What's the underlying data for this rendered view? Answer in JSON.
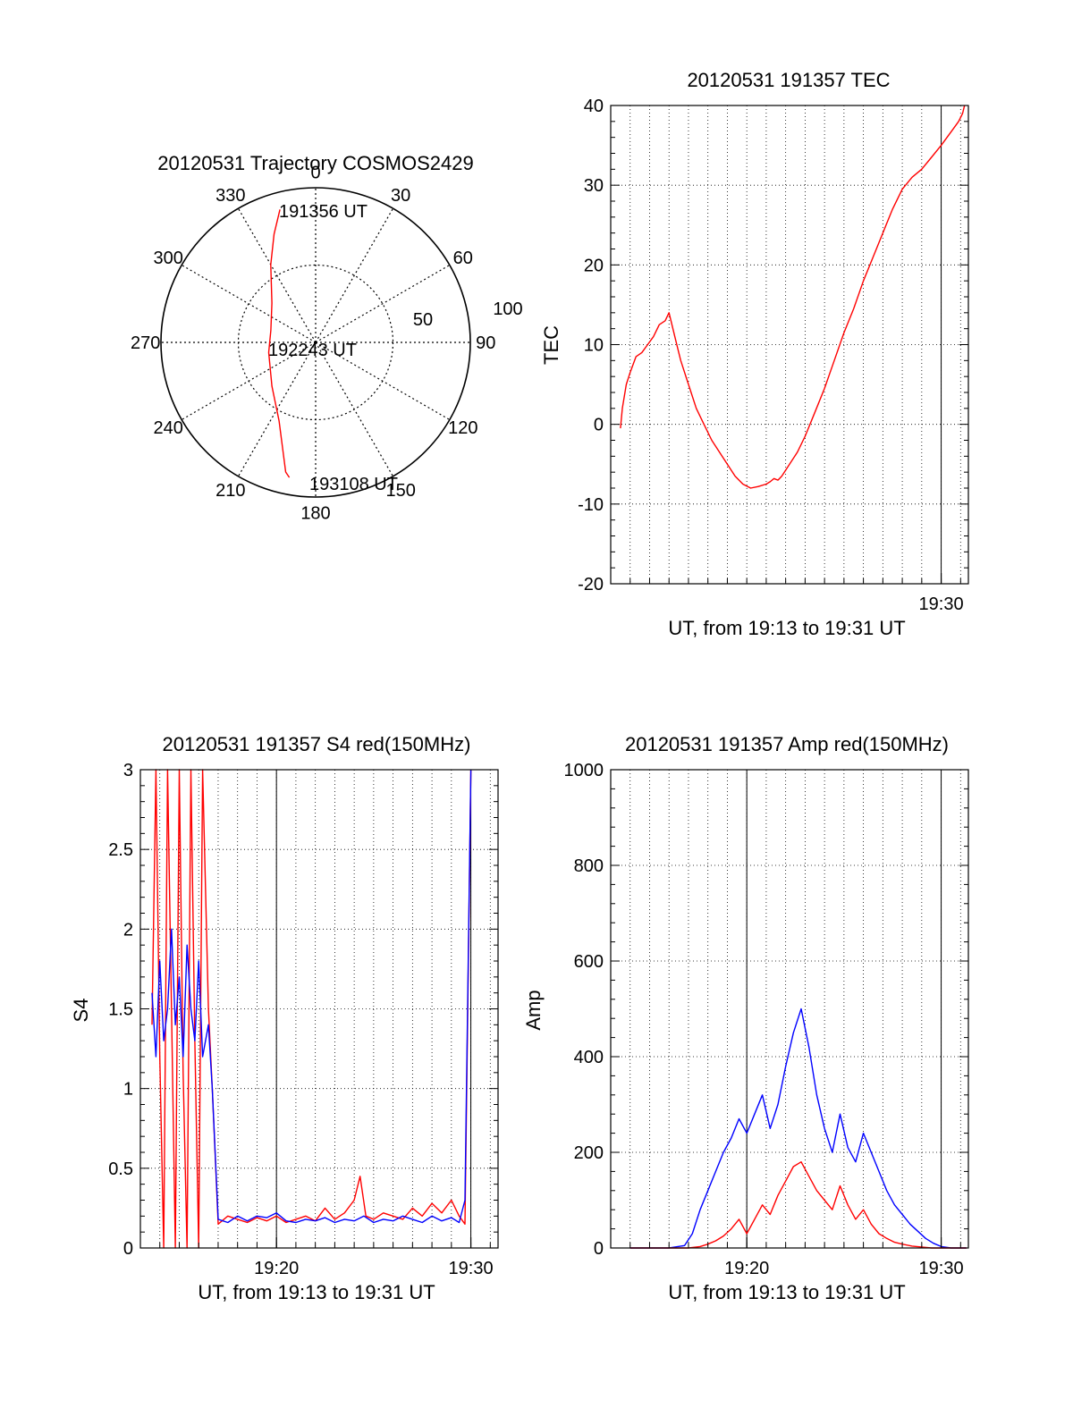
{
  "colors": {
    "red": "#ff0000",
    "blue": "#0000ff",
    "axis": "#000000",
    "grid": "#000000"
  },
  "chart_data": [
    {
      "type": "polar",
      "title": "20120531 Trajectory COSMOS2429",
      "azimuth_labels": [
        "0",
        "30",
        "60",
        "90",
        "120",
        "150",
        "180",
        "210",
        "240",
        "270",
        "300",
        "330"
      ],
      "azimuths": [
        0,
        30,
        60,
        90,
        120,
        150,
        180,
        210,
        240,
        270,
        300,
        330
      ],
      "radius_max": 100,
      "ring_labels": [
        {
          "value": 50,
          "label": "50"
        },
        {
          "value": 100,
          "label": "100"
        }
      ],
      "grid": true,
      "track": {
        "color": "red",
        "points": [
          {
            "az": 345,
            "r": 89
          },
          {
            "az": 339,
            "r": 75
          },
          {
            "az": 330,
            "r": 58
          },
          {
            "az": 312,
            "r": 38
          },
          {
            "az": 285,
            "r": 30
          },
          {
            "az": 258,
            "r": 31
          },
          {
            "az": 225,
            "r": 40
          },
          {
            "az": 205,
            "r": 56
          },
          {
            "az": 193,
            "r": 86
          },
          {
            "az": 191,
            "r": 89
          }
        ]
      },
      "annotations": [
        {
          "text": "191356 UT",
          "az": 346,
          "r": 89
        },
        {
          "text": "192243 UT",
          "az": 282,
          "r": 29
        },
        {
          "text": "193108 UT",
          "az": 191,
          "r": 89
        }
      ]
    },
    {
      "type": "line",
      "title": "20120531 191357 TEC",
      "xlabel": "UT, from 19:13 to 19:31 UT",
      "ylabel": "TEC",
      "xlim": [
        0,
        18.4
      ],
      "ylim": [
        -20,
        40
      ],
      "yticks": [
        -20,
        -10,
        0,
        10,
        20,
        30,
        40
      ],
      "xtick_labels": [
        {
          "value": 17,
          "label": "19:30"
        }
      ],
      "grid": true,
      "series": [
        {
          "color": "red",
          "x": [
            0.5,
            0.6,
            0.8,
            1.0,
            1.3,
            1.6,
            1.9,
            2.2,
            2.5,
            2.8,
            3.0,
            3.1,
            3.3,
            3.6,
            4.0,
            4.4,
            4.8,
            5.2,
            5.6,
            6.0,
            6.4,
            6.8,
            7.2,
            7.6,
            8.0,
            8.2,
            8.4,
            8.6,
            8.8,
            9.2,
            9.6,
            10.0,
            10.5,
            11.0,
            11.5,
            12.0,
            12.5,
            13.0,
            13.5,
            14.0,
            14.5,
            15.0,
            15.5,
            16.0,
            16.5,
            17.0,
            17.3,
            17.6,
            17.9,
            18.1,
            18.2
          ],
          "y": [
            -0.5,
            2,
            5,
            6.5,
            8.5,
            9,
            10,
            11,
            12.5,
            13,
            14,
            13,
            11,
            8,
            5,
            2,
            0,
            -2,
            -3.5,
            -5,
            -6.5,
            -7.5,
            -8,
            -7.8,
            -7.5,
            -7.2,
            -6.8,
            -7,
            -6.5,
            -5,
            -3.5,
            -1.5,
            1.5,
            4.5,
            8,
            11.5,
            14.5,
            18,
            21,
            24,
            27,
            29.5,
            31,
            32,
            33.5,
            35,
            36,
            37,
            38,
            39,
            40
          ]
        }
      ]
    },
    {
      "type": "line",
      "title": "20120531 191357 S4 red(150MHz)",
      "xlabel": "UT, from 19:13 to 19:31 UT",
      "ylabel": "S4",
      "xlim": [
        0,
        18.4
      ],
      "ylim": [
        0,
        3
      ],
      "yticks": [
        0,
        0.5,
        1,
        1.5,
        2,
        2.5,
        3
      ],
      "ytick_labels": [
        "0",
        "0.5",
        "1",
        "1.5",
        "2",
        "2.5",
        "3"
      ],
      "xtick_labels": [
        {
          "value": 7,
          "label": "19:20"
        },
        {
          "value": 17,
          "label": "19:30"
        }
      ],
      "grid": true,
      "series": [
        {
          "color": "red",
          "x": [
            0.6,
            0.8,
            1.0,
            1.2,
            1.4,
            1.6,
            1.8,
            2.0,
            2.2,
            2.4,
            2.6,
            2.8,
            3.0,
            3.2,
            3.5,
            3.7,
            4.0,
            4.5,
            5.0,
            5.5,
            6.0,
            6.5,
            7.0,
            7.5,
            8.0,
            8.5,
            9.0,
            9.5,
            10.0,
            10.5,
            11.0,
            11.3,
            11.6,
            12.0,
            12.5,
            13.0,
            13.5,
            14.0,
            14.5,
            15.0,
            15.5,
            16.0,
            16.4,
            16.7,
            17.0
          ],
          "y": [
            1.4,
            3.0,
            1.2,
            0.0,
            3.0,
            1.5,
            0.0,
            3.0,
            1.1,
            0.0,
            3.0,
            1.3,
            0.0,
            3.0,
            1.5,
            1.0,
            0.15,
            0.2,
            0.18,
            0.16,
            0.19,
            0.17,
            0.2,
            0.16,
            0.18,
            0.2,
            0.17,
            0.25,
            0.18,
            0.22,
            0.3,
            0.45,
            0.2,
            0.18,
            0.22,
            0.2,
            0.18,
            0.25,
            0.2,
            0.28,
            0.22,
            0.3,
            0.2,
            0.15,
            3.0
          ]
        },
        {
          "color": "blue",
          "x": [
            0.6,
            0.8,
            1.0,
            1.2,
            1.4,
            1.6,
            1.8,
            2.0,
            2.2,
            2.4,
            2.6,
            2.8,
            3.0,
            3.2,
            3.5,
            3.7,
            4.0,
            4.5,
            5.0,
            5.5,
            6.0,
            6.5,
            7.0,
            7.5,
            8.0,
            8.5,
            9.0,
            9.5,
            10.0,
            10.5,
            11.0,
            11.5,
            12.0,
            12.5,
            13.0,
            13.5,
            14.0,
            14.5,
            15.0,
            15.5,
            16.0,
            16.4,
            16.7,
            17.0
          ],
          "y": [
            1.6,
            1.2,
            1.8,
            1.3,
            1.5,
            2.0,
            1.4,
            1.7,
            1.2,
            1.9,
            1.5,
            1.3,
            1.8,
            1.2,
            1.4,
            1.0,
            0.18,
            0.16,
            0.2,
            0.17,
            0.2,
            0.19,
            0.22,
            0.17,
            0.16,
            0.18,
            0.17,
            0.19,
            0.16,
            0.18,
            0.17,
            0.2,
            0.16,
            0.18,
            0.17,
            0.2,
            0.18,
            0.16,
            0.2,
            0.17,
            0.19,
            0.16,
            0.3,
            3.0
          ]
        }
      ]
    },
    {
      "type": "line",
      "title": "20120531 191357 Amp red(150MHz)",
      "xlabel": "UT, from 19:13 to 19:31 UT",
      "ylabel": "Amp",
      "xlim": [
        0,
        18.4
      ],
      "ylim": [
        0,
        1000
      ],
      "yticks": [
        0,
        200,
        400,
        600,
        800,
        1000
      ],
      "xtick_labels": [
        {
          "value": 7,
          "label": "19:20"
        },
        {
          "value": 17,
          "label": "19:30"
        }
      ],
      "grid": true,
      "series": [
        {
          "color": "blue",
          "x": [
            1,
            2,
            3,
            3.8,
            4.2,
            4.6,
            5.0,
            5.4,
            5.8,
            6.2,
            6.6,
            7.0,
            7.4,
            7.8,
            8.2,
            8.6,
            9.0,
            9.4,
            9.8,
            10.2,
            10.6,
            11.0,
            11.4,
            11.8,
            12.2,
            12.6,
            13.0,
            13.4,
            13.8,
            14.2,
            14.6,
            15.0,
            15.4,
            15.8,
            16.2,
            16.6,
            17.0,
            17.5,
            18.0,
            18.3
          ],
          "y": [
            0,
            0,
            0,
            5,
            30,
            80,
            120,
            160,
            200,
            230,
            270,
            240,
            280,
            320,
            250,
            300,
            380,
            450,
            500,
            420,
            320,
            250,
            200,
            280,
            210,
            180,
            240,
            200,
            160,
            120,
            90,
            70,
            50,
            35,
            20,
            10,
            3,
            0,
            0,
            0
          ]
        },
        {
          "color": "red",
          "x": [
            1,
            2,
            3,
            4.0,
            4.6,
            5.0,
            5.4,
            5.8,
            6.2,
            6.6,
            7.0,
            7.4,
            7.8,
            8.2,
            8.6,
            9.0,
            9.4,
            9.8,
            10.2,
            10.6,
            11.0,
            11.4,
            11.8,
            12.2,
            12.6,
            13.0,
            13.4,
            13.8,
            14.2,
            14.6,
            15.0,
            15.5,
            16.0,
            16.5,
            17.0,
            17.5,
            18.0,
            18.3
          ],
          "y": [
            0,
            0,
            0,
            0,
            3,
            8,
            15,
            25,
            40,
            60,
            30,
            60,
            90,
            70,
            110,
            140,
            170,
            180,
            150,
            120,
            100,
            80,
            130,
            90,
            60,
            80,
            50,
            30,
            20,
            12,
            8,
            4,
            2,
            0,
            0,
            0,
            0,
            0
          ]
        }
      ]
    }
  ]
}
